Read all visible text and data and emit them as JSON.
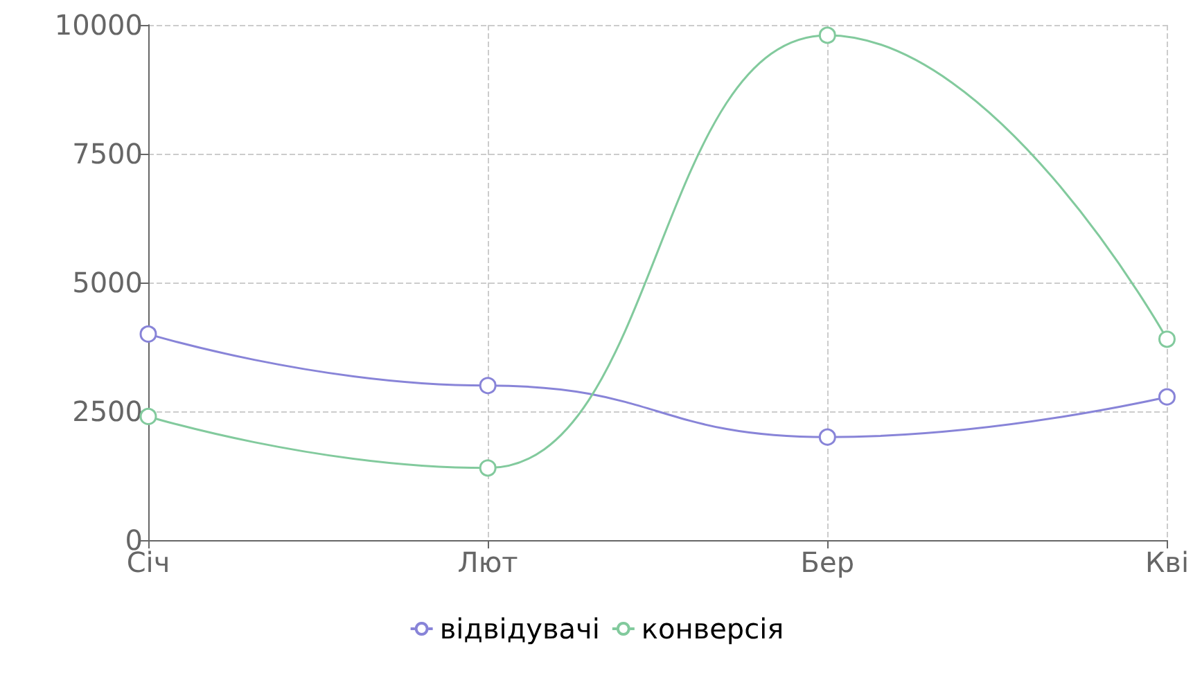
{
  "chart_data": {
    "type": "line",
    "categories": [
      "Січ",
      "Лют",
      "Бер",
      "Кві"
    ],
    "series": [
      {
        "name": "відвідувачі",
        "color": "#8884d8",
        "values": [
          4000,
          3000,
          2000,
          2780
        ]
      },
      {
        "name": "конверсія",
        "color": "#82ca9d",
        "values": [
          2400,
          1400,
          9800,
          3900
        ]
      }
    ],
    "ylim": [
      0,
      10000
    ],
    "yticks": [
      0,
      2500,
      5000,
      7500,
      10000
    ],
    "grid": true,
    "legend": "bottom",
    "marker": "circle",
    "line_style": "solid"
  }
}
